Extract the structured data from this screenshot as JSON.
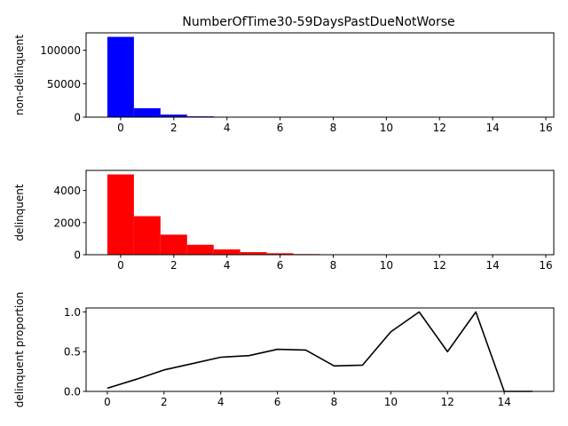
{
  "title": "NumberOfTime30-59DaysPastDueNotWorse",
  "chart_data": [
    {
      "type": "bar",
      "name": "non-delinquent histogram",
      "ylabel": "non-delinquent",
      "color": "#0000ff",
      "x": [
        0,
        1,
        2,
        3,
        4,
        5,
        6,
        7,
        8,
        9,
        10,
        11,
        12,
        13,
        14,
        15
      ],
      "values": [
        120000,
        13300,
        3800,
        1200,
        450,
        150,
        50,
        20,
        10,
        5,
        2,
        0,
        1,
        0,
        0,
        0
      ],
      "xlim": [
        -1.3,
        16.3
      ],
      "ylim": [
        0,
        126000
      ],
      "xticks": [
        0,
        2,
        4,
        6,
        8,
        10,
        12,
        14,
        16
      ],
      "yticks": [
        0,
        50000,
        100000
      ]
    },
    {
      "type": "bar",
      "name": "delinquent histogram",
      "ylabel": "delinquent",
      "color": "#ff0000",
      "x": [
        0,
        1,
        2,
        3,
        4,
        5,
        6,
        7,
        8,
        9,
        10,
        11,
        12,
        13,
        14,
        15
      ],
      "values": [
        5000,
        2400,
        1250,
        620,
        330,
        160,
        90,
        40,
        20,
        5,
        3,
        1,
        1,
        1,
        0,
        0
      ],
      "xlim": [
        -1.3,
        16.3
      ],
      "ylim": [
        0,
        5250
      ],
      "xticks": [
        0,
        2,
        4,
        6,
        8,
        10,
        12,
        14,
        16
      ],
      "yticks": [
        0,
        2000,
        4000
      ]
    },
    {
      "type": "line",
      "name": "delinquent proportion",
      "ylabel": "delinquent proportion",
      "color": "#000000",
      "x": [
        0,
        1,
        2,
        3,
        4,
        5,
        6,
        7,
        8,
        9,
        10,
        11,
        12,
        13,
        14,
        15
      ],
      "values": [
        0.04,
        0.15,
        0.27,
        0.35,
        0.43,
        0.45,
        0.53,
        0.52,
        0.32,
        0.33,
        0.75,
        1.0,
        0.5,
        1.0,
        0.0,
        0.0
      ],
      "xlim": [
        -0.75,
        15.75
      ],
      "ylim": [
        0,
        1.05
      ],
      "xticks": [
        0,
        2,
        4,
        6,
        8,
        10,
        12,
        14
      ],
      "yticks": [
        0.0,
        0.5,
        1.0
      ],
      "ytick_labels": [
        "0.0",
        "0.5",
        "1.0"
      ]
    }
  ]
}
